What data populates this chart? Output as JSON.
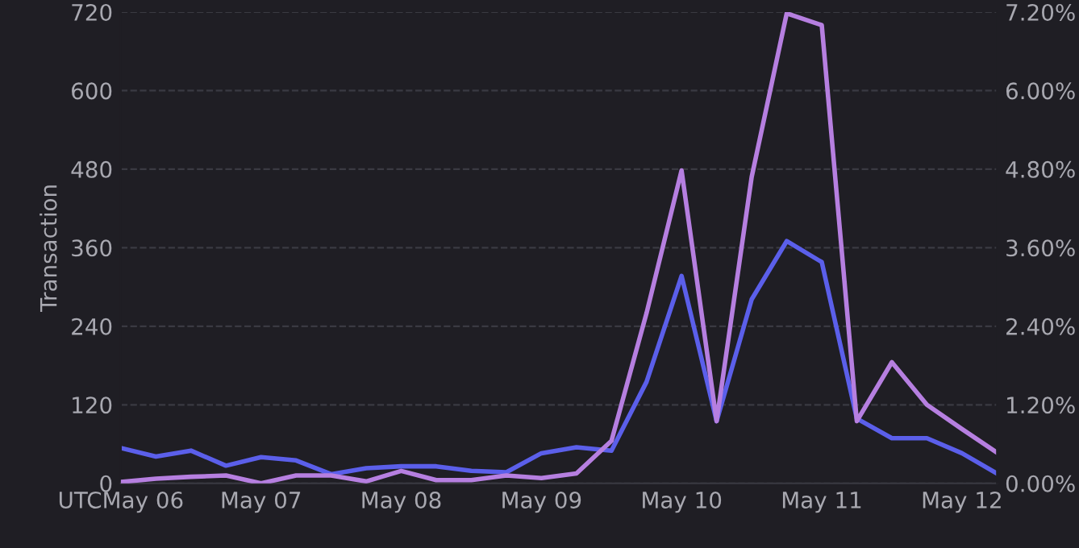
{
  "chart_data": {
    "type": "line",
    "ylabel": "Transaction",
    "categories": [
      "UTCMay 06",
      null,
      null,
      null,
      "May 07",
      null,
      null,
      null,
      "May 08",
      null,
      null,
      null,
      "May 09",
      null,
      null,
      null,
      "May 10",
      null,
      null,
      null,
      "May 11",
      null,
      null,
      null,
      "May 12",
      null
    ],
    "ylim": [
      0,
      720
    ],
    "yticks": [
      0,
      120,
      240,
      360,
      480,
      600,
      720
    ],
    "y2lim": [
      0,
      7.2
    ],
    "y2ticks": [
      {
        "value": 0,
        "label": "0.00%"
      },
      {
        "value": 1.2,
        "label": "1.20%"
      },
      {
        "value": 2.4,
        "label": "2.40%"
      },
      {
        "value": 3.6,
        "label": "3.60%"
      },
      {
        "value": 4.8,
        "label": "4.80%"
      },
      {
        "value": 6.0,
        "label": "6.00%"
      },
      {
        "value": 7.2,
        "label": "7.20%"
      }
    ],
    "grid": "y",
    "line_style": "solid",
    "marker": "none",
    "series": [
      {
        "color": "#5b5fea",
        "values": [
          54,
          41,
          50,
          27,
          40,
          35,
          14,
          23,
          26,
          26,
          19,
          17,
          46,
          55,
          50,
          155,
          317,
          95,
          281,
          370,
          338,
          99,
          69,
          69,
          46,
          15
        ]
      },
      {
        "color": "#b67fe0",
        "axis": "y2",
        "values": [
          0.02,
          0.07,
          0.1,
          0.12,
          0.0,
          0.12,
          0.12,
          0.03,
          0.19,
          0.05,
          0.05,
          0.12,
          0.08,
          0.15,
          0.65,
          2.6,
          4.78,
          0.95,
          4.68,
          7.18,
          7.0,
          0.95,
          1.85,
          1.2,
          0.83,
          0.47
        ]
      }
    ]
  }
}
